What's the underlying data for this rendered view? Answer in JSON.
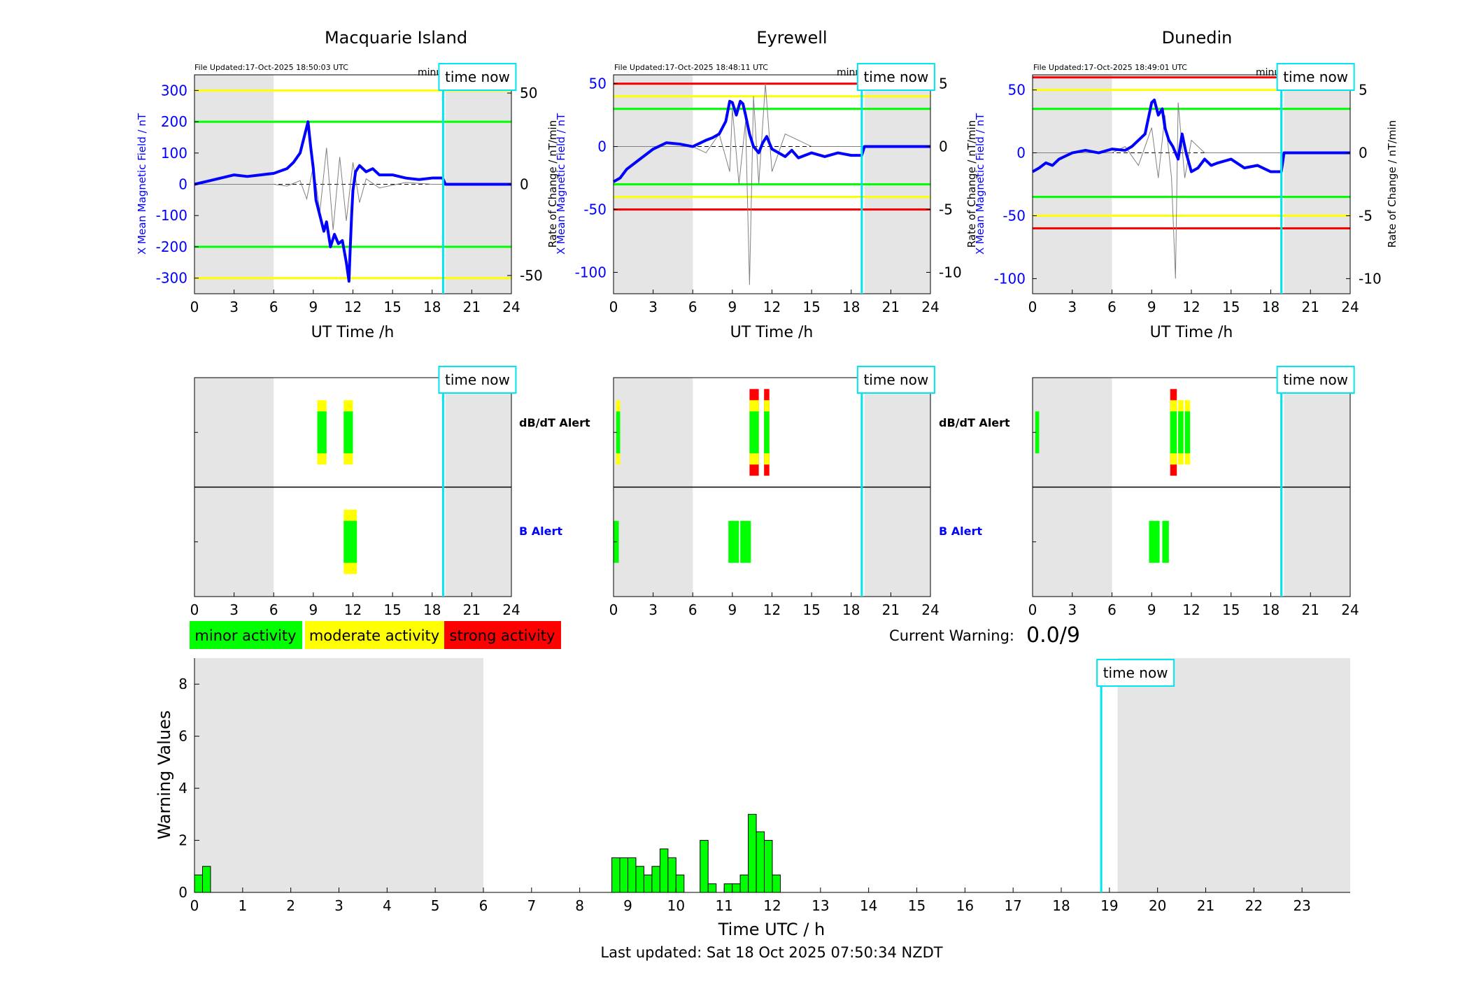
{
  "footer": {
    "last_updated": "Last updated: Sat 18 Oct 2025 07:50:34 NZDT"
  },
  "labels": {
    "x_label_top": "UT Time /h",
    "left_axis_label": "X Mean Magnetic Field / nT",
    "right_axis_label": "Rate of Change / nT/min",
    "minute_resolution": "minute resolution",
    "time_now": "time now",
    "dbdt_alert": "dB/dT Alert",
    "b_alert": "B Alert"
  },
  "legend": {
    "items": [
      {
        "label": "minor activity",
        "color": "#00ff00"
      },
      {
        "label": "moderate activity",
        "color": "#ffff00"
      },
      {
        "label": "strong activity",
        "color": "#ff0000"
      }
    ]
  },
  "current_warning": {
    "label": "Current Warning:",
    "value": "0.0/9"
  },
  "colors": {
    "x_field": "#0000ff",
    "rate": "#808080",
    "night_shade": "#e5e5e5",
    "time_now_line": "#00e5ee",
    "minor": "#00ff00",
    "moderate": "#ffff00",
    "strong": "#ff0000"
  },
  "chart_data": [
    {
      "type": "line",
      "title": "Macquarie Island",
      "file_updated": "File Updated:17-Oct-2025 18:50:03 UTC",
      "xlabel": "UT Time /h",
      "ylabel": "X Mean Magnetic Field / nT",
      "ylabel_right": "",
      "xlim": [
        0,
        24
      ],
      "xticks": [
        0,
        3,
        6,
        9,
        12,
        15,
        18,
        21,
        24
      ],
      "ylim": [
        -350,
        350
      ],
      "yticks": [
        -300,
        -200,
        -100,
        0,
        100,
        200,
        300
      ],
      "ylim_right": [
        -60,
        60
      ],
      "yticks_right": [
        -50,
        0,
        50
      ],
      "thresholds": [
        {
          "value": 300,
          "color": "yellow"
        },
        {
          "value": -300,
          "color": "yellow"
        },
        {
          "value": 200,
          "color": "green"
        },
        {
          "value": -200,
          "color": "green"
        }
      ],
      "night_shading": [
        [
          0,
          6
        ],
        [
          19,
          24
        ]
      ],
      "time_now": 18.83,
      "series": [
        {
          "axis": "left",
          "x": [
            0,
            1,
            2,
            3,
            4,
            5,
            6,
            7,
            7.5,
            8,
            8.3,
            8.6,
            8.8,
            9.0,
            9.2,
            9.5,
            9.8,
            10.0,
            10.3,
            10.6,
            10.9,
            11.2,
            11.5,
            11.7,
            11.8,
            11.9,
            12.0,
            12.2,
            12.5,
            13.0,
            13.5,
            14.0,
            15,
            16,
            17,
            18,
            18.8,
            19,
            24
          ],
          "y": [
            0,
            10,
            20,
            30,
            25,
            30,
            35,
            50,
            70,
            100,
            150,
            200,
            120,
            50,
            -50,
            -100,
            -150,
            -120,
            -200,
            -160,
            -190,
            -180,
            -250,
            -310,
            -200,
            -100,
            -20,
            40,
            60,
            40,
            50,
            30,
            30,
            20,
            15,
            20,
            20,
            0,
            0
          ]
        },
        {
          "axis": "right",
          "x": [
            0,
            2,
            4,
            6,
            7,
            8,
            8.5,
            9,
            9.5,
            10,
            10.5,
            11,
            11.5,
            12,
            12.5,
            13,
            14,
            16,
            18,
            18.8
          ],
          "y": [
            0,
            0,
            0,
            0,
            -1,
            2,
            -8,
            10,
            -15,
            20,
            -25,
            15,
            -20,
            12,
            -10,
            3,
            -2,
            1,
            0,
            0
          ]
        }
      ],
      "alerts": {
        "dbdt": [
          {
            "x": [
              9.3,
              10.0
            ],
            "levels": [
              "moderate",
              "minor"
            ]
          },
          {
            "x": [
              11.3,
              12.0
            ],
            "levels": [
              "moderate",
              "minor"
            ]
          }
        ],
        "b": [
          {
            "x": [
              11.3,
              12.3
            ],
            "levels": [
              "moderate",
              "minor"
            ]
          }
        ]
      }
    },
    {
      "type": "line",
      "title": "Eyrewell",
      "file_updated": "File Updated:17-Oct-2025 18:48:11 UTC",
      "xlabel": "UT Time /h",
      "ylabel": "X Mean Magnetic Field / nT",
      "ylabel_right": "Rate of Change / nT/min",
      "xlim": [
        0,
        24
      ],
      "xticks": [
        0,
        3,
        6,
        9,
        12,
        15,
        18,
        21,
        24
      ],
      "ylim": [
        -117,
        57
      ],
      "yticks": [
        -100,
        -50,
        0,
        50
      ],
      "ylim_right": [
        -11.7,
        5.7
      ],
      "yticks_right": [
        -10,
        -5,
        0,
        5
      ],
      "thresholds": [
        {
          "value": 50,
          "color": "red"
        },
        {
          "value": -50,
          "color": "red"
        },
        {
          "value": 40,
          "color": "yellow"
        },
        {
          "value": -40,
          "color": "yellow"
        },
        {
          "value": 30,
          "color": "green"
        },
        {
          "value": -30,
          "color": "green"
        }
      ],
      "night_shading": [
        [
          0,
          6
        ],
        [
          19,
          24
        ]
      ],
      "time_now": 18.8,
      "series": [
        {
          "axis": "left",
          "x": [
            0,
            0.5,
            1,
            2,
            3,
            4,
            5,
            6,
            7,
            7.5,
            8,
            8.5,
            8.8,
            9,
            9.3,
            9.6,
            9.8,
            10,
            10.3,
            10.6,
            11,
            11.3,
            11.6,
            12,
            12.5,
            13,
            13.5,
            14,
            15,
            16,
            17,
            18,
            18.8,
            19,
            24
          ],
          "y": [
            -28,
            -25,
            -18,
            -10,
            -2,
            3,
            2,
            0,
            5,
            7,
            10,
            20,
            36,
            35,
            25,
            36,
            34,
            25,
            10,
            0,
            -5,
            3,
            8,
            -2,
            -5,
            -8,
            -3,
            -9,
            -5,
            -8,
            -5,
            -7,
            -7,
            0,
            0
          ]
        },
        {
          "axis": "right",
          "x": [
            0,
            2,
            4,
            6,
            7,
            8,
            8.8,
            9,
            9.5,
            10,
            10.3,
            10.6,
            11,
            11.5,
            12,
            13,
            15,
            17,
            18.8
          ],
          "y": [
            0,
            0,
            0,
            0,
            -0.5,
            1,
            -2,
            3,
            -3,
            2,
            -11,
            4,
            -3,
            5,
            -2,
            1,
            0,
            0,
            0
          ]
        }
      ],
      "alerts": {
        "dbdt": [
          {
            "x": [
              0.2,
              0.5
            ],
            "levels": [
              "moderate",
              "minor"
            ]
          },
          {
            "x": [
              10.3,
              11.0
            ],
            "levels": [
              "strong",
              "moderate",
              "minor"
            ]
          },
          {
            "x": [
              11.4,
              11.8
            ],
            "levels": [
              "strong",
              "moderate",
              "minor"
            ]
          }
        ],
        "b": [
          {
            "x": [
              0.0,
              0.4
            ],
            "levels": [
              "minor"
            ]
          },
          {
            "x": [
              8.7,
              9.5
            ],
            "levels": [
              "minor"
            ]
          },
          {
            "x": [
              9.6,
              10.4
            ],
            "levels": [
              "minor"
            ]
          }
        ]
      }
    },
    {
      "type": "line",
      "title": "Dunedin",
      "file_updated": "File Updated:17-Oct-2025 18:49:01 UTC",
      "xlabel": "UT Time /h",
      "ylabel": "X Mean Magnetic Field / nT",
      "ylabel_right": "Rate of Change / nT/min",
      "xlim": [
        0,
        24
      ],
      "xticks": [
        0,
        3,
        6,
        9,
        12,
        15,
        18,
        21,
        24
      ],
      "ylim": [
        -112,
        62
      ],
      "yticks": [
        -100,
        -50,
        0,
        50
      ],
      "ylim_right": [
        -11.2,
        6.2
      ],
      "yticks_right": [
        -10,
        -5,
        0,
        5
      ],
      "thresholds": [
        {
          "value": 60,
          "color": "red"
        },
        {
          "value": -60,
          "color": "red"
        },
        {
          "value": 50,
          "color": "yellow"
        },
        {
          "value": -50,
          "color": "yellow"
        },
        {
          "value": 35,
          "color": "green"
        },
        {
          "value": -35,
          "color": "green"
        }
      ],
      "night_shading": [
        [
          0,
          6
        ],
        [
          19,
          24
        ]
      ],
      "time_now": 18.8,
      "series": [
        {
          "axis": "left",
          "x": [
            0,
            0.5,
            1,
            1.5,
            2,
            3,
            4,
            5,
            6,
            7,
            7.5,
            8,
            8.5,
            9,
            9.2,
            9.5,
            9.8,
            10,
            10.3,
            10.6,
            11,
            11.3,
            11.6,
            12,
            12.5,
            13,
            13.5,
            14,
            15,
            16,
            17,
            18,
            18.8,
            19,
            24
          ],
          "y": [
            -15,
            -12,
            -8,
            -10,
            -5,
            0,
            2,
            0,
            3,
            2,
            5,
            10,
            15,
            40,
            42,
            30,
            35,
            20,
            10,
            5,
            -5,
            15,
            0,
            -15,
            -12,
            -5,
            -10,
            -8,
            -5,
            -12,
            -10,
            -15,
            -15,
            0,
            0
          ]
        },
        {
          "axis": "right",
          "x": [
            0,
            2,
            4,
            6,
            7,
            8,
            9,
            9.5,
            10,
            10.5,
            10.8,
            11,
            11.5,
            12,
            13,
            15,
            17,
            18.8
          ],
          "y": [
            0,
            0,
            0,
            0,
            0.5,
            -1,
            2,
            -2,
            3,
            -2,
            -10,
            4,
            -2,
            1,
            0,
            0,
            0,
            0
          ]
        }
      ],
      "alerts": {
        "dbdt": [
          {
            "x": [
              0.2,
              0.5
            ],
            "levels": [
              "minor"
            ]
          },
          {
            "x": [
              10.4,
              10.9
            ],
            "levels": [
              "strong",
              "moderate",
              "minor"
            ]
          },
          {
            "x": [
              11.0,
              11.4
            ],
            "levels": [
              "moderate",
              "minor"
            ]
          },
          {
            "x": [
              11.5,
              11.9
            ],
            "levels": [
              "moderate",
              "minor"
            ]
          }
        ],
        "b": [
          {
            "x": [
              8.8,
              9.6
            ],
            "levels": [
              "minor"
            ]
          },
          {
            "x": [
              9.8,
              10.3
            ],
            "levels": [
              "minor"
            ]
          }
        ]
      }
    },
    {
      "type": "bar",
      "title": "",
      "xlabel": "Time UTC / h",
      "ylabel": "Warning Values",
      "xlim": [
        0,
        24
      ],
      "xticks": [
        0,
        1,
        2,
        3,
        4,
        5,
        6,
        7,
        8,
        9,
        10,
        11,
        12,
        13,
        14,
        15,
        16,
        17,
        18,
        19,
        20,
        21,
        22,
        23
      ],
      "ylim": [
        0,
        9
      ],
      "yticks": [
        0,
        2,
        4,
        6,
        8
      ],
      "night_shading": [
        [
          0,
          6
        ],
        [
          19.17,
          24
        ]
      ],
      "time_now": 18.83,
      "bar_width": 0.1667,
      "x": [
        0.0,
        0.167,
        8.667,
        8.833,
        9.0,
        9.167,
        9.333,
        9.5,
        9.667,
        9.833,
        10.0,
        10.5,
        10.667,
        11.0,
        11.167,
        11.333,
        11.5,
        11.667,
        11.833,
        12.0
      ],
      "values": [
        0.67,
        1.0,
        1.33,
        1.33,
        1.33,
        1.0,
        0.67,
        1.0,
        1.67,
        1.33,
        0.67,
        2.0,
        0.33,
        0.33,
        0.33,
        0.67,
        3.0,
        2.33,
        2.0,
        0.67
      ]
    }
  ]
}
